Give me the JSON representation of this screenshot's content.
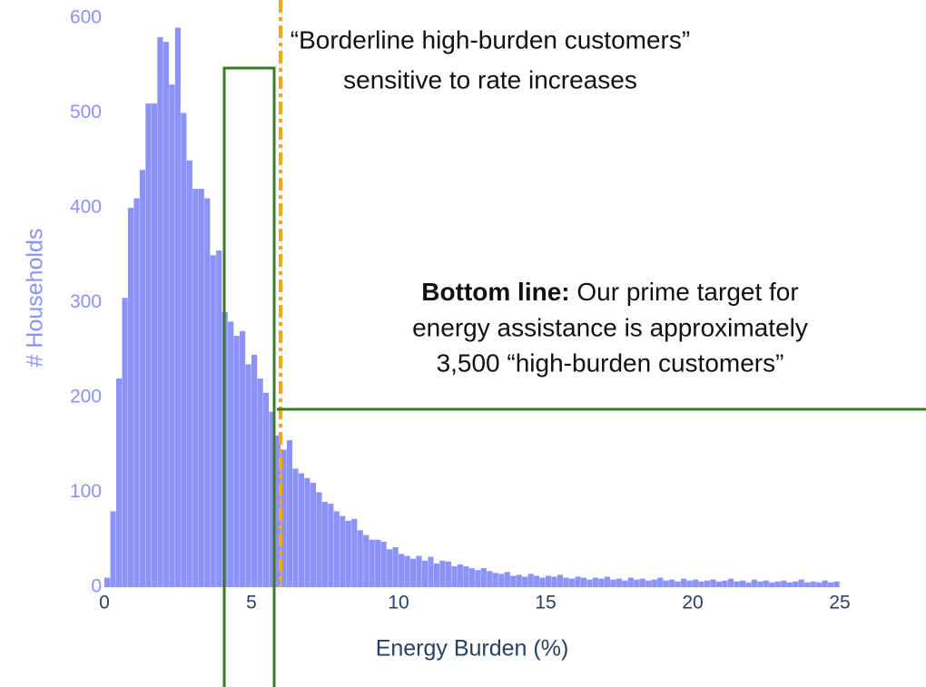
{
  "chart_data": {
    "type": "histogram",
    "x_label": "Energy Burden (%)",
    "y_label": "# Households",
    "color": "#8b93f8",
    "bins": [
      0,
      0.2,
      0.4,
      0.6,
      0.8,
      1,
      1.2,
      1.4,
      1.6,
      1.8,
      2,
      2.2,
      2.4,
      2.6,
      2.8,
      3,
      3.2,
      3.4,
      3.6,
      3.8,
      4,
      4.2,
      4.4,
      4.6,
      4.8,
      5,
      5.2,
      5.4,
      5.6,
      5.8,
      6,
      6.2,
      6.4,
      6.6,
      6.8,
      7,
      7.2,
      7.4,
      7.6,
      7.8,
      8,
      8.2,
      8.4,
      8.6,
      8.8,
      9,
      9.2,
      9.4,
      9.6,
      9.8,
      10,
      10.2,
      10.4,
      10.6,
      10.8,
      11,
      11.2,
      11.4,
      11.6,
      11.8,
      12,
      12.2,
      12.4,
      12.6,
      12.8,
      13,
      13.2,
      13.4,
      13.6,
      13.8,
      14,
      14.2,
      14.4,
      14.6,
      14.8,
      15,
      15.2,
      15.4,
      15.6,
      15.8,
      16,
      16.2,
      16.4,
      16.6,
      16.8,
      17,
      17.2,
      17.4,
      17.6,
      17.8,
      18,
      18.2,
      18.4,
      18.6,
      18.8,
      19,
      19.2,
      19.4,
      19.6,
      19.8,
      20,
      20.2,
      20.4,
      20.6,
      20.8,
      21,
      21.2,
      21.4,
      21.6,
      21.8,
      22,
      22.2,
      22.4,
      22.6,
      22.8,
      23,
      23.2,
      23.4,
      23.6,
      23.8,
      24,
      24.2,
      24.4,
      24.6,
      24.8,
      25
    ],
    "values": [
      10,
      80,
      220,
      305,
      400,
      410,
      440,
      510,
      510,
      580,
      575,
      530,
      590,
      500,
      450,
      420,
      420,
      410,
      350,
      355,
      290,
      280,
      265,
      270,
      235,
      245,
      220,
      205,
      185,
      160,
      145,
      155,
      125,
      120,
      115,
      110,
      100,
      90,
      88,
      80,
      75,
      70,
      72,
      60,
      55,
      50,
      50,
      48,
      40,
      42,
      35,
      33,
      30,
      33,
      28,
      32,
      25,
      28,
      27,
      22,
      24,
      22,
      20,
      18,
      20,
      17,
      15,
      14,
      16,
      12,
      13,
      11,
      14,
      12,
      10,
      12,
      11,
      13,
      10,
      9,
      11,
      10,
      8,
      10,
      9,
      11,
      8,
      9,
      7,
      10,
      8,
      9,
      7,
      8,
      10,
      7,
      8,
      6,
      9,
      7,
      8,
      6,
      7,
      8,
      6,
      7,
      9,
      6,
      7,
      5,
      8,
      6,
      7,
      5,
      6,
      7,
      5,
      6,
      8,
      5,
      6,
      5,
      7,
      5,
      6
    ],
    "xlim": [
      0,
      25
    ],
    "xticks": [
      0,
      5,
      10,
      15,
      20,
      25
    ],
    "ylim": [
      0,
      600
    ],
    "yticks": [
      0,
      100,
      200,
      300,
      400,
      500,
      600
    ],
    "annotations": [
      {
        "lines": [
          "“Borderline high-burden customers”",
          "sensitive to rate increases"
        ]
      },
      {
        "bold": "Bottom line:",
        "lines": [
          " Our prime target for",
          "energy assistance is approximately",
          "3,500 “high-burden customers”"
        ]
      }
    ]
  }
}
